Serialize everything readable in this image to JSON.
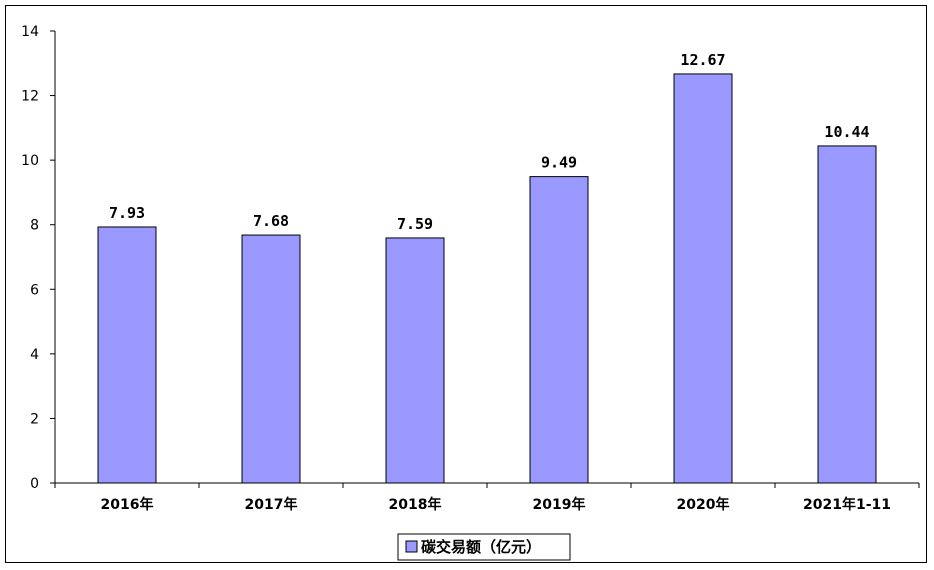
{
  "chart_data": {
    "type": "bar",
    "categories": [
      "2016年",
      "2017年",
      "2018年",
      "2019年",
      "2020年",
      "2021年1-11"
    ],
    "series": [
      {
        "name": "碳交易额（亿元）",
        "values": [
          7.93,
          7.68,
          7.59,
          9.49,
          12.67,
          10.44
        ]
      }
    ],
    "data_labels": [
      "7.93",
      "7.68",
      "7.59",
      "9.49",
      "12.67",
      "10.44"
    ],
    "ylim": [
      0,
      14
    ],
    "yticks": [
      0,
      2,
      4,
      6,
      8,
      10,
      12,
      14
    ],
    "grid": false,
    "legend_position": "bottom",
    "bar_color": "#9999ff",
    "bar_edge_color": "#000000"
  }
}
